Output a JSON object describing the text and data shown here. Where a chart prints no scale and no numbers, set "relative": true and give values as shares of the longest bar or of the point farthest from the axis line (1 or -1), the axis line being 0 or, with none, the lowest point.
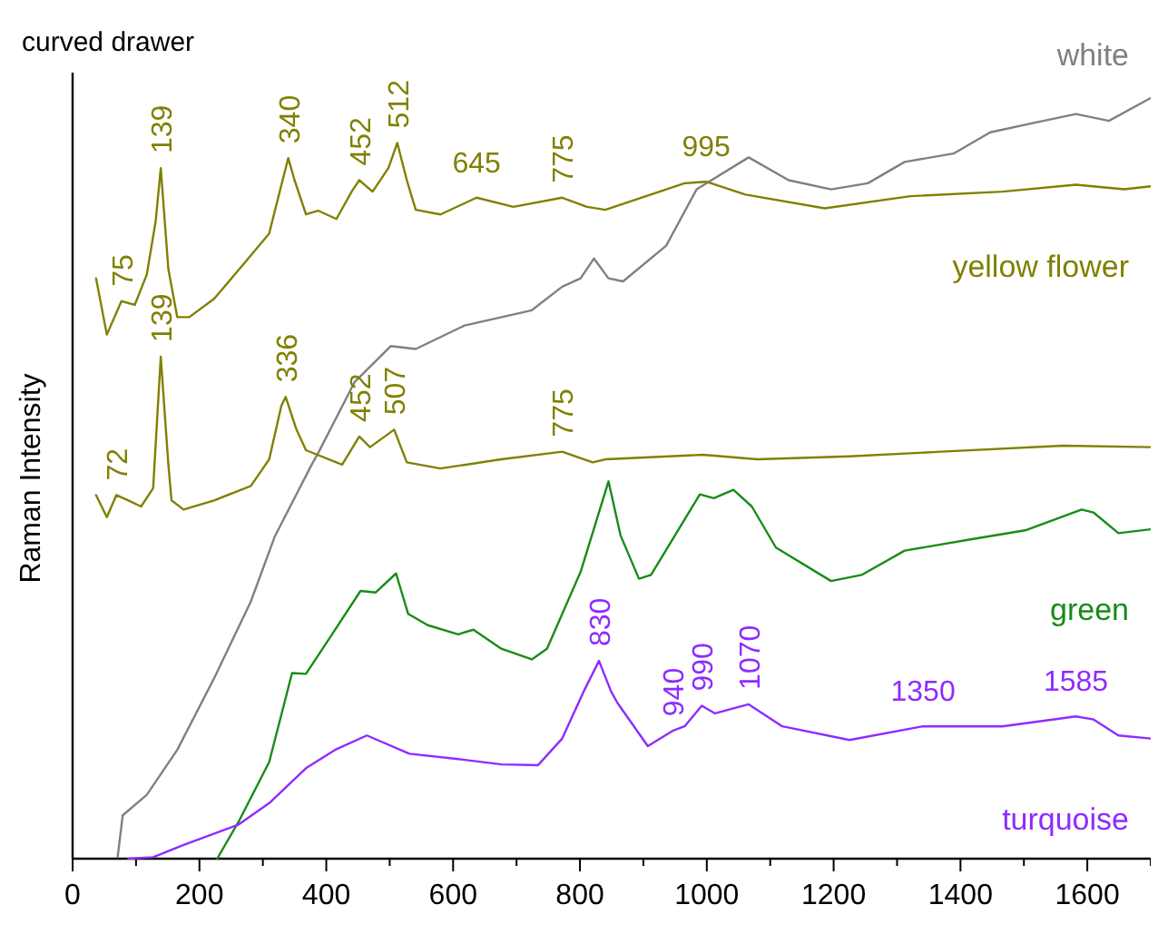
{
  "chart_data": {
    "type": "line",
    "title": "curved drawer",
    "ylabel": "Raman Intensity",
    "relative": true,
    "xlim": [
      0,
      1700
    ],
    "xticks": [
      0,
      {
        "value": 100,
        "label": null
      },
      200,
      {
        "value": 300,
        "label": null
      },
      400,
      {
        "value": 500,
        "label": null
      },
      600,
      {
        "value": 700,
        "label": null
      },
      800,
      {
        "value": 900,
        "label": null
      },
      1000,
      {
        "value": 1100,
        "label": null
      },
      1200,
      {
        "value": 1300,
        "label": null
      },
      1400,
      {
        "value": 1500,
        "label": null
      },
      1600,
      {
        "value": 1700,
        "label": null
      }
    ],
    "series": [
      {
        "name": "white",
        "color": "#808080",
        "x": [
          71,
          79,
          117,
          165,
          223,
          281,
          319,
          377,
          387,
          445,
          502,
          541,
          618,
          724,
          772,
          801,
          822,
          845,
          868,
          936,
          984,
          1066,
          1129,
          1196,
          1254,
          1312,
          1389,
          1447,
          1514,
          1582,
          1634,
          1700
        ],
        "values": [
          0.002,
          0.057,
          0.084,
          0.143,
          0.237,
          0.338,
          0.424,
          0.518,
          0.533,
          0.627,
          0.674,
          0.67,
          0.701,
          0.721,
          0.752,
          0.763,
          0.789,
          0.763,
          0.759,
          0.806,
          0.88,
          0.922,
          0.892,
          0.88,
          0.888,
          0.916,
          0.927,
          0.955,
          0.967,
          0.979,
          0.97,
          1.0
        ]
      },
      {
        "name": "yellow flower",
        "color": "#808000",
        "x": [
          37,
          54,
          77,
          98,
          117,
          131,
          139,
          151,
          165,
          184,
          223,
          271,
          310,
          329,
          340,
          350,
          368,
          387,
          416,
          440,
          452,
          473,
          498,
          512,
          527,
          541,
          580,
          637,
          695,
          772,
          811,
          840,
          965,
          999,
          1061,
          1186,
          1321,
          1466,
          1582,
          1658,
          1700
        ],
        "values": [
          0.763,
          0.689,
          0.733,
          0.728,
          0.768,
          0.838,
          0.908,
          0.775,
          0.712,
          0.712,
          0.736,
          0.783,
          0.822,
          0.885,
          0.921,
          0.892,
          0.847,
          0.852,
          0.841,
          0.877,
          0.892,
          0.877,
          0.908,
          0.941,
          0.892,
          0.853,
          0.847,
          0.869,
          0.857,
          0.869,
          0.857,
          0.853,
          0.888,
          0.89,
          0.873,
          0.855,
          0.871,
          0.877,
          0.886,
          0.88,
          0.884
        ]
      },
      {
        "color": "#808000",
        "x": [
          37,
          54,
          69,
          88,
          108,
          127,
          139,
          151,
          156,
          175,
          223,
          281,
          310,
          329,
          336,
          353,
          368,
          425,
          452,
          469,
          507,
          527,
          580,
          676,
          772,
          820,
          840,
          994,
          1080,
          1225,
          1369,
          1562,
          1700
        ],
        "values": [
          0.478,
          0.449,
          0.478,
          0.471,
          0.463,
          0.487,
          0.66,
          0.518,
          0.471,
          0.459,
          0.471,
          0.49,
          0.525,
          0.595,
          0.607,
          0.564,
          0.537,
          0.518,
          0.555,
          0.541,
          0.564,
          0.521,
          0.513,
          0.525,
          0.535,
          0.521,
          0.525,
          0.531,
          0.525,
          0.529,
          0.535,
          0.543,
          0.541
        ]
      },
      {
        "name": "green",
        "color": "#188c18",
        "x": [
          228,
          262,
          310,
          334,
          346,
          368,
          406,
          454,
          478,
          510,
          529,
          560,
          608,
          632,
          676,
          724,
          748,
          801,
          845,
          864,
          893,
          912,
          955,
          989,
          1011,
          1042,
          1071,
          1109,
          1196,
          1244,
          1312,
          1418,
          1504,
          1591,
          1610,
          1649,
          1700
        ],
        "values": [
          0.0,
          0.049,
          0.127,
          0.205,
          0.244,
          0.243,
          0.291,
          0.352,
          0.35,
          0.375,
          0.322,
          0.307,
          0.295,
          0.301,
          0.276,
          0.262,
          0.276,
          0.377,
          0.496,
          0.425,
          0.368,
          0.373,
          0.432,
          0.479,
          0.474,
          0.485,
          0.463,
          0.409,
          0.365,
          0.373,
          0.405,
          0.42,
          0.432,
          0.459,
          0.455,
          0.428,
          0.433
        ]
      },
      {
        "name": "turquoise",
        "color": "#8f2bff",
        "x": [
          88,
          127,
          175,
          262,
          310,
          368,
          416,
          464,
          531,
          608,
          676,
          734,
          772,
          806,
          830,
          849,
          859,
          907,
          946,
          965,
          992,
          1013,
          1066,
          1119,
          1225,
          1341,
          1466,
          1582,
          1610,
          1649,
          1700
        ],
        "values": [
          0.0,
          0.002,
          0.018,
          0.045,
          0.073,
          0.119,
          0.144,
          0.162,
          0.138,
          0.131,
          0.124,
          0.123,
          0.158,
          0.22,
          0.26,
          0.22,
          0.205,
          0.148,
          0.168,
          0.174,
          0.201,
          0.191,
          0.203,
          0.174,
          0.156,
          0.174,
          0.174,
          0.187,
          0.183,
          0.162,
          0.158
        ]
      }
    ],
    "annotations": [
      {
        "text": "75",
        "x": 77,
        "y": 0.733
      },
      {
        "text": "139",
        "x": 139,
        "y": 0.908
      },
      {
        "text": "340",
        "x": 340,
        "y": 0.921
      },
      {
        "text": "452",
        "x": 452,
        "y": 0.892
      },
      {
        "text": "512",
        "x": 512,
        "y": 0.941
      },
      {
        "text": "645",
        "x": 637,
        "y": 0.869
      },
      {
        "text": "775",
        "x": 772,
        "y": 0.869
      },
      {
        "text": "995",
        "x": 999,
        "y": 0.89
      },
      {
        "text": "72",
        "x": 69,
        "y": 0.478
      },
      {
        "text": "139",
        "x": 139,
        "y": 0.66
      },
      {
        "text": "336",
        "x": 336,
        "y": 0.607
      },
      {
        "text": "452",
        "x": 452,
        "y": 0.555
      },
      {
        "text": "507",
        "x": 507,
        "y": 0.564
      },
      {
        "text": "775",
        "x": 772,
        "y": 0.535
      },
      {
        "text": "830",
        "x": 830,
        "y": 0.26
      },
      {
        "text": "940",
        "x": 946,
        "y": 0.168
      },
      {
        "text": "990",
        "x": 992,
        "y": 0.201
      },
      {
        "text": "1070",
        "x": 1066,
        "y": 0.203
      },
      {
        "text": "1350",
        "x": 1341,
        "y": 0.174
      },
      {
        "text": "1585",
        "x": 1582,
        "y": 0.187
      }
    ]
  }
}
